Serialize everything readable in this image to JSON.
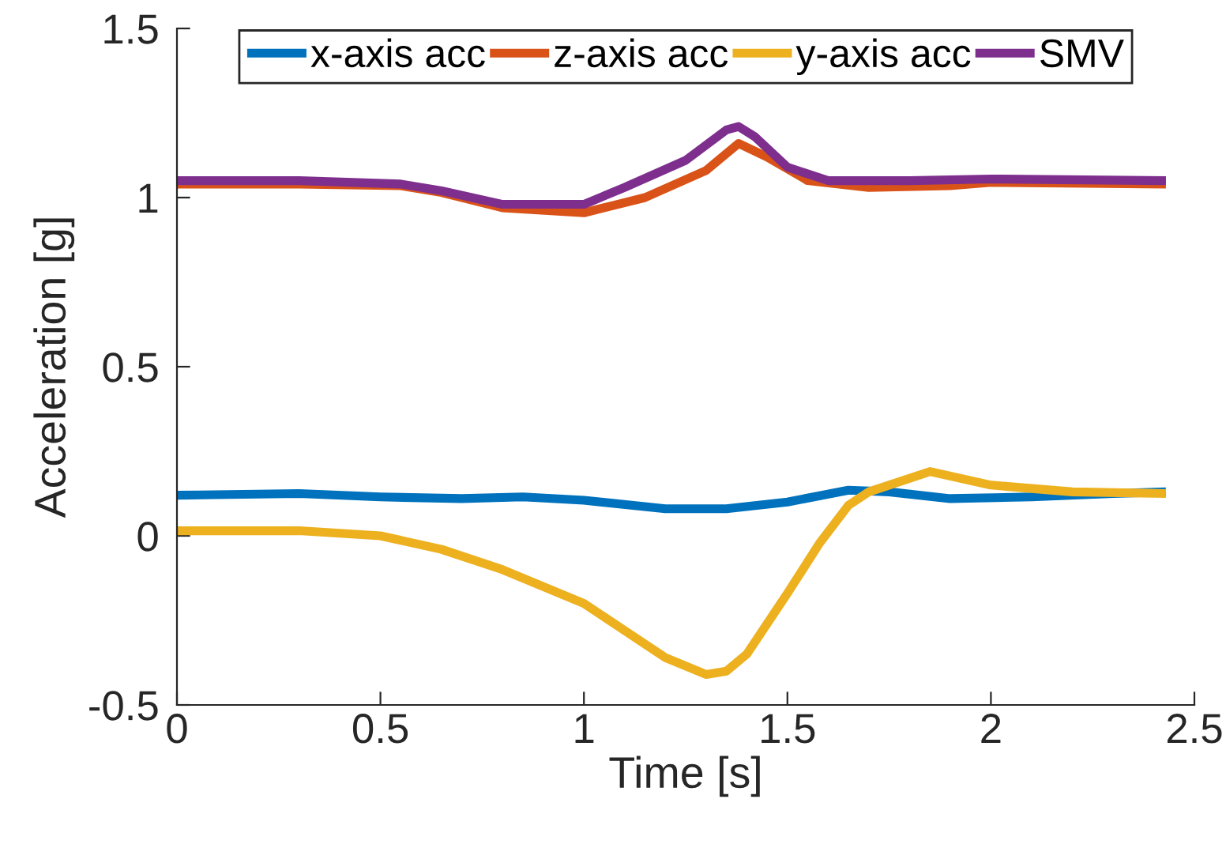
{
  "chart_data": {
    "type": "line",
    "xlabel": "Time [s]",
    "ylabel": "Acceleration [g]",
    "xlim": [
      0,
      2.5
    ],
    "ylim": [
      -0.5,
      1.5
    ],
    "xticks": [
      0,
      0.5,
      1,
      1.5,
      2,
      2.5
    ],
    "yticks": [
      -0.5,
      0,
      0.5,
      1,
      1.5
    ],
    "grid": false,
    "legend": "top",
    "line_style": "solid",
    "marker": "none",
    "series": [
      {
        "name": "x-axis acc",
        "color": "#0072bd",
        "x": [
          0,
          0.3,
          0.5,
          0.7,
          0.85,
          1.0,
          1.2,
          1.35,
          1.5,
          1.65,
          1.75,
          1.9,
          2.1,
          2.3,
          2.43
        ],
        "values": [
          0.12,
          0.125,
          0.115,
          0.11,
          0.115,
          0.105,
          0.08,
          0.08,
          0.1,
          0.135,
          0.13,
          0.11,
          0.115,
          0.125,
          0.13
        ]
      },
      {
        "name": "z-axis acc",
        "color": "#d95319",
        "x": [
          0,
          0.3,
          0.55,
          0.65,
          0.8,
          1.0,
          1.15,
          1.3,
          1.38,
          1.45,
          1.55,
          1.7,
          1.9,
          2.0,
          2.43
        ],
        "values": [
          1.04,
          1.04,
          1.035,
          1.015,
          0.97,
          0.955,
          1.0,
          1.08,
          1.16,
          1.12,
          1.05,
          1.03,
          1.035,
          1.045,
          1.04
        ]
      },
      {
        "name": "y-axis acc",
        "color": "#edb120",
        "x": [
          0,
          0.3,
          0.5,
          0.65,
          0.8,
          1.0,
          1.1,
          1.2,
          1.3,
          1.35,
          1.4,
          1.5,
          1.58,
          1.65,
          1.7,
          1.85,
          2.0,
          2.2,
          2.43
        ],
        "values": [
          0.015,
          0.015,
          0.0,
          -0.04,
          -0.1,
          -0.2,
          -0.28,
          -0.36,
          -0.41,
          -0.4,
          -0.35,
          -0.17,
          -0.02,
          0.09,
          0.13,
          0.19,
          0.15,
          0.13,
          0.125
        ]
      },
      {
        "name": "SMV",
        "color": "#7e2f8e",
        "x": [
          0,
          0.3,
          0.55,
          0.65,
          0.8,
          1.0,
          1.1,
          1.25,
          1.35,
          1.38,
          1.42,
          1.5,
          1.6,
          1.8,
          2.0,
          2.43
        ],
        "values": [
          1.05,
          1.05,
          1.04,
          1.02,
          0.98,
          0.98,
          1.03,
          1.11,
          1.2,
          1.21,
          1.18,
          1.09,
          1.05,
          1.05,
          1.055,
          1.05
        ]
      }
    ]
  }
}
